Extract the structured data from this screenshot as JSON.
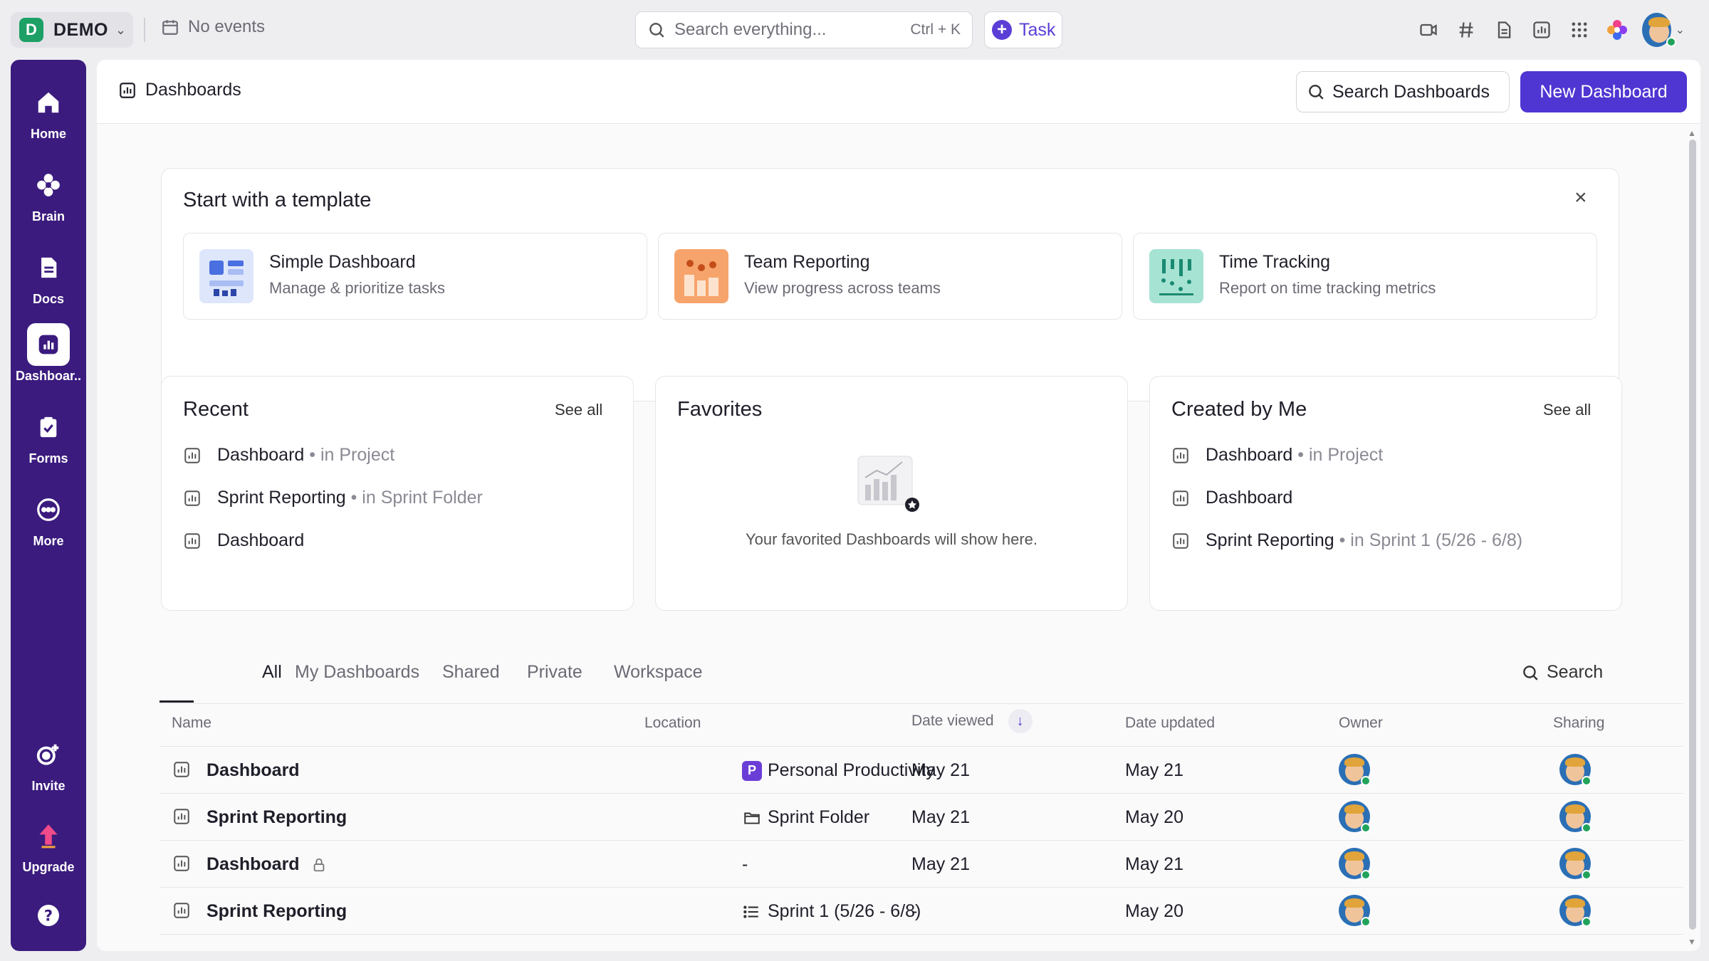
{
  "topbar": {
    "workspace_badge": "D",
    "workspace_name": "DEMO",
    "events_label": "No events",
    "search_placeholder": "Search everything...",
    "search_shortcut": "Ctrl + K",
    "task_label": "Task"
  },
  "rail": {
    "items": [
      {
        "label": "Home"
      },
      {
        "label": "Brain"
      },
      {
        "label": "Docs"
      },
      {
        "label": "Dashboar.."
      },
      {
        "label": "Forms"
      },
      {
        "label": "More"
      }
    ],
    "invite_label": "Invite",
    "upgrade_label": "Upgrade"
  },
  "header": {
    "title": "Dashboards",
    "search_button": "Search Dashboards",
    "new_button": "New Dashboard"
  },
  "templates": {
    "title": "Start with a template",
    "items": [
      {
        "name": "Simple Dashboard",
        "desc": "Manage & prioritize tasks"
      },
      {
        "name": "Team Reporting",
        "desc": "View progress across teams"
      },
      {
        "name": "Time Tracking",
        "desc": "Report on time tracking metrics"
      }
    ]
  },
  "recent": {
    "title": "Recent",
    "see_all": "See all",
    "items": [
      {
        "name": "Dashboard",
        "sub": "• in Project"
      },
      {
        "name": "Sprint Reporting",
        "sub": "• in Sprint Folder"
      },
      {
        "name": "Dashboard",
        "sub": ""
      }
    ]
  },
  "favorites": {
    "title": "Favorites",
    "empty": "Your favorited Dashboards will show here."
  },
  "created": {
    "title": "Created by Me",
    "see_all": "See all",
    "items": [
      {
        "name": "Dashboard",
        "sub": "• in Project"
      },
      {
        "name": "Dashboard",
        "sub": ""
      },
      {
        "name": "Sprint Reporting",
        "sub": "• in Sprint 1 (5/26 - 6/8)"
      }
    ]
  },
  "tabs": [
    "All",
    "My Dashboards",
    "Shared",
    "Private",
    "Workspace"
  ],
  "tab_search": "Search",
  "table": {
    "columns": {
      "name": "Name",
      "location": "Location",
      "date_viewed": "Date viewed",
      "date_updated": "Date updated",
      "owner": "Owner",
      "sharing": "Sharing"
    },
    "rows": [
      {
        "name": "Dashboard",
        "location": "Personal Productivity",
        "location_badge": "P",
        "viewed": "May 21",
        "updated": "May 21"
      },
      {
        "name": "Sprint Reporting",
        "location": "Sprint Folder",
        "viewed": "May 21",
        "updated": "May 20"
      },
      {
        "name": "Dashboard",
        "location": "-",
        "viewed": "May 21",
        "updated": "May 21"
      },
      {
        "name": "Sprint Reporting",
        "location": "Sprint 1 (5/26 - 6/8)",
        "viewed": "-",
        "updated": "May 20"
      }
    ]
  },
  "colors": {
    "rail": "#3b1b7e",
    "accent": "#4f35d2",
    "workspace_badge": "#1ca066"
  }
}
